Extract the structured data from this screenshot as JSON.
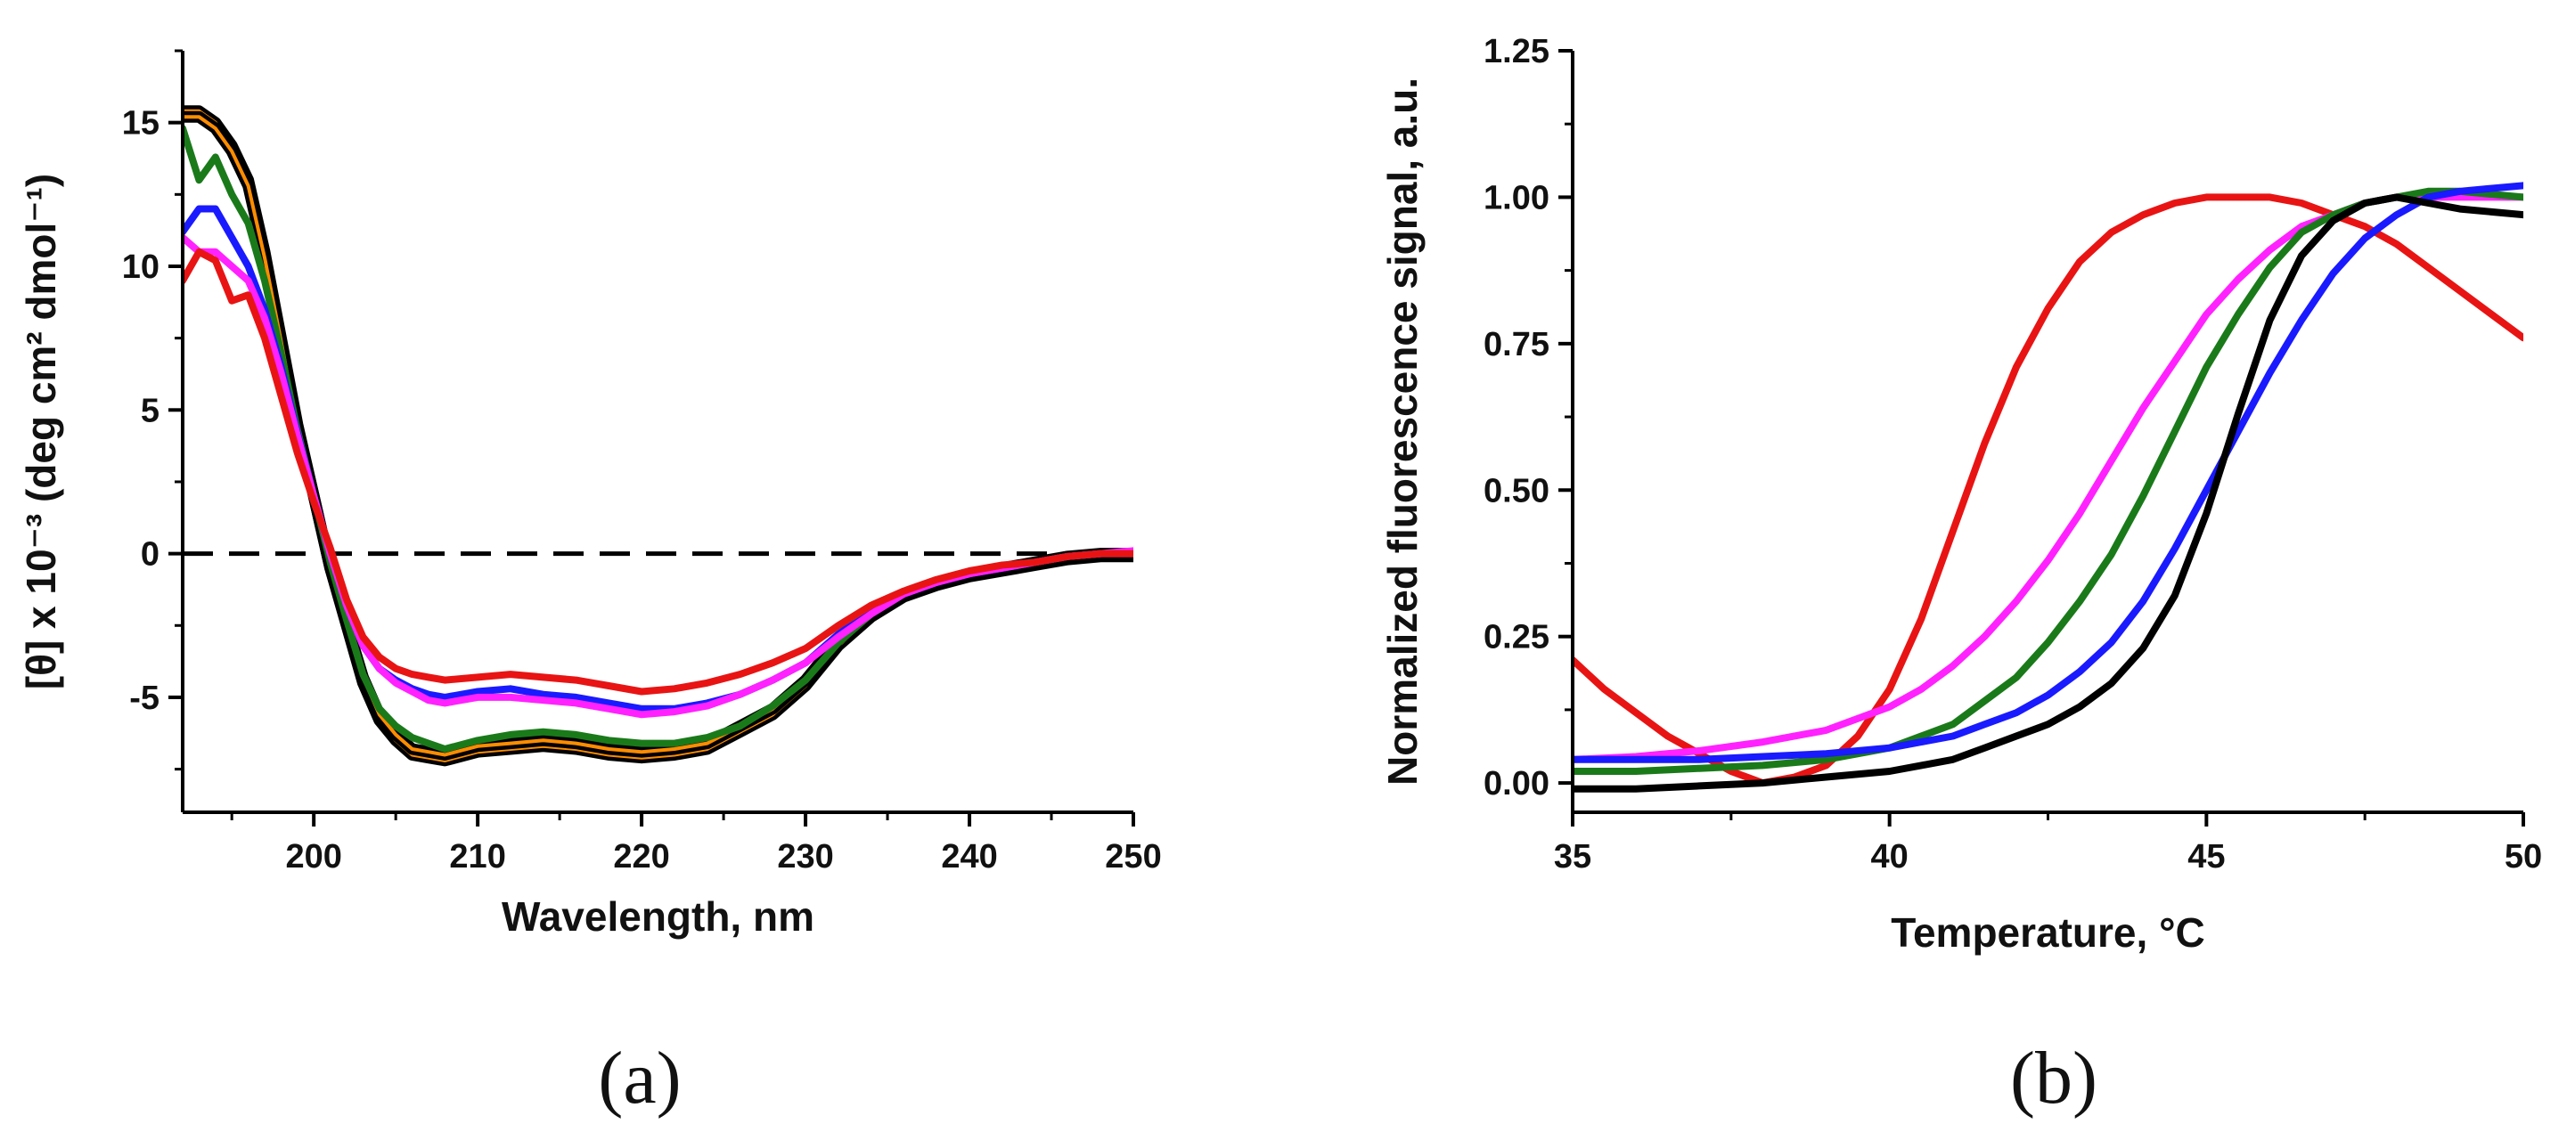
{
  "figure": {
    "panel_a_label": "(a)",
    "panel_b_label": "(b)"
  },
  "chart_data": [
    {
      "id": "a",
      "type": "line",
      "title": "",
      "xlabel": "Wavelength, nm",
      "ylabel": "[θ] x 10⁻³ (deg cm² dmol⁻¹)",
      "xlim": [
        192,
        250
      ],
      "ylim": [
        -9,
        17.5
      ],
      "xticks": [
        200,
        210,
        220,
        230,
        240,
        250
      ],
      "yticks": [
        -5,
        0,
        5,
        10,
        15
      ],
      "xtick_labels": [
        "200",
        "210",
        "220",
        "230",
        "240",
        "250"
      ],
      "ytick_labels": [
        "-5",
        "0",
        "5",
        "10",
        "15"
      ],
      "reference_line": {
        "y": 0,
        "style": "dashed"
      },
      "series": [
        {
          "name": "black-outline-1",
          "color": "#000000",
          "accent": "#ff8c00",
          "x": [
            192,
            193,
            194,
            195,
            196,
            197,
            198,
            199,
            200,
            201,
            202,
            203,
            204,
            205,
            206,
            207,
            208,
            210,
            212,
            214,
            216,
            218,
            220,
            222,
            224,
            226,
            228,
            230,
            232,
            234,
            236,
            238,
            240,
            242,
            244,
            246,
            248,
            250
          ],
          "y": [
            15.4,
            15.4,
            15.0,
            14.2,
            13.0,
            10.5,
            7.5,
            4.5,
            2.0,
            -0.5,
            -2.5,
            -4.5,
            -5.8,
            -6.5,
            -7.0,
            -7.1,
            -7.2,
            -6.9,
            -6.8,
            -6.7,
            -6.8,
            -7.0,
            -7.1,
            -7.0,
            -6.8,
            -6.2,
            -5.6,
            -4.6,
            -3.2,
            -2.2,
            -1.5,
            -1.1,
            -0.8,
            -0.6,
            -0.4,
            -0.2,
            -0.1,
            -0.1
          ]
        },
        {
          "name": "black-outline-2",
          "color": "#000000",
          "accent": "#ff8c00",
          "x": [
            192,
            193,
            194,
            195,
            196,
            197,
            198,
            199,
            200,
            201,
            202,
            203,
            204,
            205,
            206,
            207,
            208,
            210,
            212,
            214,
            216,
            218,
            220,
            222,
            224,
            226,
            228,
            230,
            232,
            234,
            236,
            238,
            240,
            242,
            244,
            246,
            248,
            250
          ],
          "y": [
            15.2,
            15.2,
            14.8,
            14.0,
            12.8,
            10.3,
            7.4,
            4.4,
            2.0,
            -0.5,
            -2.4,
            -4.3,
            -5.6,
            -6.3,
            -6.8,
            -6.9,
            -7.0,
            -6.7,
            -6.6,
            -6.5,
            -6.6,
            -6.8,
            -6.9,
            -6.8,
            -6.6,
            -6.0,
            -5.4,
            -4.4,
            -3.0,
            -2.1,
            -1.4,
            -1.0,
            -0.7,
            -0.5,
            -0.3,
            -0.1,
            0.0,
            0.0
          ]
        },
        {
          "name": "green",
          "color": "#1a7a1a",
          "x": [
            192,
            193,
            194,
            195,
            196,
            197,
            198,
            199,
            200,
            201,
            202,
            203,
            204,
            205,
            206,
            207,
            208,
            210,
            212,
            214,
            216,
            218,
            220,
            222,
            224,
            226,
            228,
            230,
            232,
            234,
            236,
            238,
            240,
            242,
            244,
            246,
            248,
            250
          ],
          "y": [
            14.8,
            13.0,
            13.8,
            12.5,
            11.5,
            9.5,
            7.0,
            4.3,
            2.0,
            -0.3,
            -2.3,
            -4.2,
            -5.4,
            -6.0,
            -6.4,
            -6.6,
            -6.8,
            -6.5,
            -6.3,
            -6.2,
            -6.3,
            -6.5,
            -6.6,
            -6.6,
            -6.4,
            -6.0,
            -5.3,
            -4.4,
            -3.1,
            -2.1,
            -1.4,
            -1.0,
            -0.7,
            -0.5,
            -0.3,
            -0.1,
            0.0,
            0.0
          ]
        },
        {
          "name": "blue",
          "color": "#1a1aff",
          "x": [
            192,
            193,
            194,
            195,
            196,
            197,
            198,
            199,
            200,
            201,
            202,
            203,
            204,
            205,
            206,
            207,
            208,
            210,
            212,
            214,
            216,
            218,
            220,
            222,
            224,
            226,
            228,
            230,
            232,
            234,
            236,
            238,
            240,
            242,
            244,
            246,
            248,
            250
          ],
          "y": [
            11.2,
            12.0,
            12.0,
            11.0,
            10.0,
            8.5,
            6.5,
            4.2,
            2.0,
            0.0,
            -1.8,
            -3.2,
            -4.0,
            -4.4,
            -4.7,
            -4.9,
            -5.0,
            -4.8,
            -4.7,
            -4.9,
            -5.0,
            -5.2,
            -5.4,
            -5.4,
            -5.2,
            -4.9,
            -4.4,
            -3.8,
            -2.8,
            -2.0,
            -1.4,
            -1.0,
            -0.7,
            -0.5,
            -0.3,
            -0.1,
            0.0,
            0.0
          ]
        },
        {
          "name": "magenta",
          "color": "#ff22ff",
          "x": [
            192,
            193,
            194,
            195,
            196,
            197,
            198,
            199,
            200,
            201,
            202,
            203,
            204,
            205,
            206,
            207,
            208,
            210,
            212,
            214,
            216,
            218,
            220,
            222,
            224,
            226,
            228,
            230,
            232,
            234,
            236,
            238,
            240,
            242,
            244,
            246,
            248,
            250
          ],
          "y": [
            11.0,
            10.5,
            10.5,
            10.0,
            9.5,
            8.2,
            6.3,
            4.1,
            2.0,
            0.0,
            -1.8,
            -3.2,
            -4.0,
            -4.5,
            -4.8,
            -5.1,
            -5.2,
            -5.0,
            -5.0,
            -5.1,
            -5.2,
            -5.4,
            -5.6,
            -5.5,
            -5.3,
            -4.9,
            -4.4,
            -3.8,
            -2.9,
            -2.1,
            -1.4,
            -1.0,
            -0.7,
            -0.5,
            -0.3,
            -0.1,
            0.0,
            0.1
          ]
        },
        {
          "name": "red",
          "color": "#e81414",
          "x": [
            192,
            193,
            194,
            195,
            196,
            197,
            198,
            199,
            200,
            201,
            202,
            203,
            204,
            205,
            206,
            207,
            208,
            210,
            212,
            214,
            216,
            218,
            220,
            222,
            224,
            226,
            228,
            230,
            232,
            234,
            236,
            238,
            240,
            242,
            244,
            246,
            248,
            250
          ],
          "y": [
            9.5,
            10.5,
            10.2,
            8.8,
            9.0,
            7.5,
            5.5,
            3.5,
            1.8,
            0.2,
            -1.6,
            -2.9,
            -3.6,
            -4.0,
            -4.2,
            -4.3,
            -4.4,
            -4.3,
            -4.2,
            -4.3,
            -4.4,
            -4.6,
            -4.8,
            -4.7,
            -4.5,
            -4.2,
            -3.8,
            -3.3,
            -2.5,
            -1.8,
            -1.3,
            -0.9,
            -0.6,
            -0.4,
            -0.3,
            -0.1,
            0.0,
            0.0
          ]
        }
      ]
    },
    {
      "id": "b",
      "type": "line",
      "title": "",
      "xlabel": "Temperature, °C",
      "ylabel": "Normalized fluorescence signal, a.u.",
      "xlim": [
        35,
        50
      ],
      "ylim": [
        -0.05,
        1.25
      ],
      "xticks": [
        35,
        40,
        45,
        50
      ],
      "yticks": [
        0.0,
        0.25,
        0.5,
        0.75,
        1.0,
        1.25
      ],
      "xtick_labels": [
        "35",
        "40",
        "45",
        "50"
      ],
      "ytick_labels": [
        "0.00",
        "0.25",
        "0.50",
        "0.75",
        "1.00",
        "1.25"
      ],
      "series": [
        {
          "name": "red",
          "color": "#e81414",
          "x": [
            35,
            35.5,
            36,
            36.5,
            37,
            37.5,
            38,
            38.5,
            39,
            39.5,
            40,
            40.5,
            41,
            41.5,
            42,
            42.5,
            43,
            43.5,
            44,
            44.5,
            45,
            45.5,
            46,
            46.5,
            47,
            47.5,
            48,
            48.5,
            49,
            49.5,
            50
          ],
          "y": [
            0.21,
            0.16,
            0.12,
            0.08,
            0.05,
            0.02,
            0.0,
            0.01,
            0.03,
            0.08,
            0.16,
            0.28,
            0.43,
            0.58,
            0.71,
            0.81,
            0.89,
            0.94,
            0.97,
            0.99,
            1.0,
            1.0,
            1.0,
            0.99,
            0.97,
            0.95,
            0.92,
            0.88,
            0.84,
            0.8,
            0.76
          ]
        },
        {
          "name": "magenta",
          "color": "#ff22ff",
          "x": [
            35,
            36,
            37,
            38,
            39,
            40,
            40.5,
            41,
            41.5,
            42,
            42.5,
            43,
            43.5,
            44,
            44.5,
            45,
            45.5,
            46,
            46.5,
            47,
            47.5,
            48,
            48.5,
            49,
            50
          ],
          "y": [
            0.04,
            0.045,
            0.055,
            0.07,
            0.09,
            0.13,
            0.16,
            0.2,
            0.25,
            0.31,
            0.38,
            0.46,
            0.55,
            0.64,
            0.72,
            0.8,
            0.86,
            0.91,
            0.95,
            0.97,
            0.99,
            1.0,
            1.0,
            1.0,
            1.0
          ]
        },
        {
          "name": "green",
          "color": "#1a7a1a",
          "x": [
            35,
            36,
            37,
            38,
            39,
            40,
            40.5,
            41,
            41.5,
            42,
            42.5,
            43,
            43.5,
            44,
            44.5,
            45,
            45.5,
            46,
            46.5,
            47,
            47.5,
            48,
            48.5,
            49,
            50
          ],
          "y": [
            0.02,
            0.02,
            0.025,
            0.03,
            0.04,
            0.06,
            0.08,
            0.1,
            0.14,
            0.18,
            0.24,
            0.31,
            0.39,
            0.49,
            0.6,
            0.71,
            0.8,
            0.88,
            0.94,
            0.97,
            0.99,
            1.0,
            1.01,
            1.01,
            1.0
          ]
        },
        {
          "name": "blue",
          "color": "#1a1aff",
          "x": [
            35,
            36,
            37,
            38,
            39,
            40,
            40.5,
            41,
            41.5,
            42,
            42.5,
            43,
            43.5,
            44,
            44.5,
            45,
            45.5,
            46,
            46.5,
            47,
            47.5,
            48,
            48.5,
            49,
            50
          ],
          "y": [
            0.04,
            0.04,
            0.04,
            0.045,
            0.05,
            0.06,
            0.07,
            0.08,
            0.1,
            0.12,
            0.15,
            0.19,
            0.24,
            0.31,
            0.4,
            0.5,
            0.6,
            0.7,
            0.79,
            0.87,
            0.93,
            0.97,
            1.0,
            1.01,
            1.02
          ]
        },
        {
          "name": "black",
          "color": "#000000",
          "x": [
            35,
            36,
            37,
            38,
            39,
            40,
            40.5,
            41,
            41.5,
            42,
            42.5,
            43,
            43.5,
            44,
            44.5,
            45,
            45.5,
            46,
            46.5,
            47,
            47.5,
            48,
            48.5,
            49,
            50
          ],
          "y": [
            -0.01,
            -0.01,
            -0.005,
            0.0,
            0.01,
            0.02,
            0.03,
            0.04,
            0.06,
            0.08,
            0.1,
            0.13,
            0.17,
            0.23,
            0.32,
            0.46,
            0.63,
            0.79,
            0.9,
            0.96,
            0.99,
            1.0,
            0.99,
            0.98,
            0.97
          ]
        }
      ]
    }
  ]
}
